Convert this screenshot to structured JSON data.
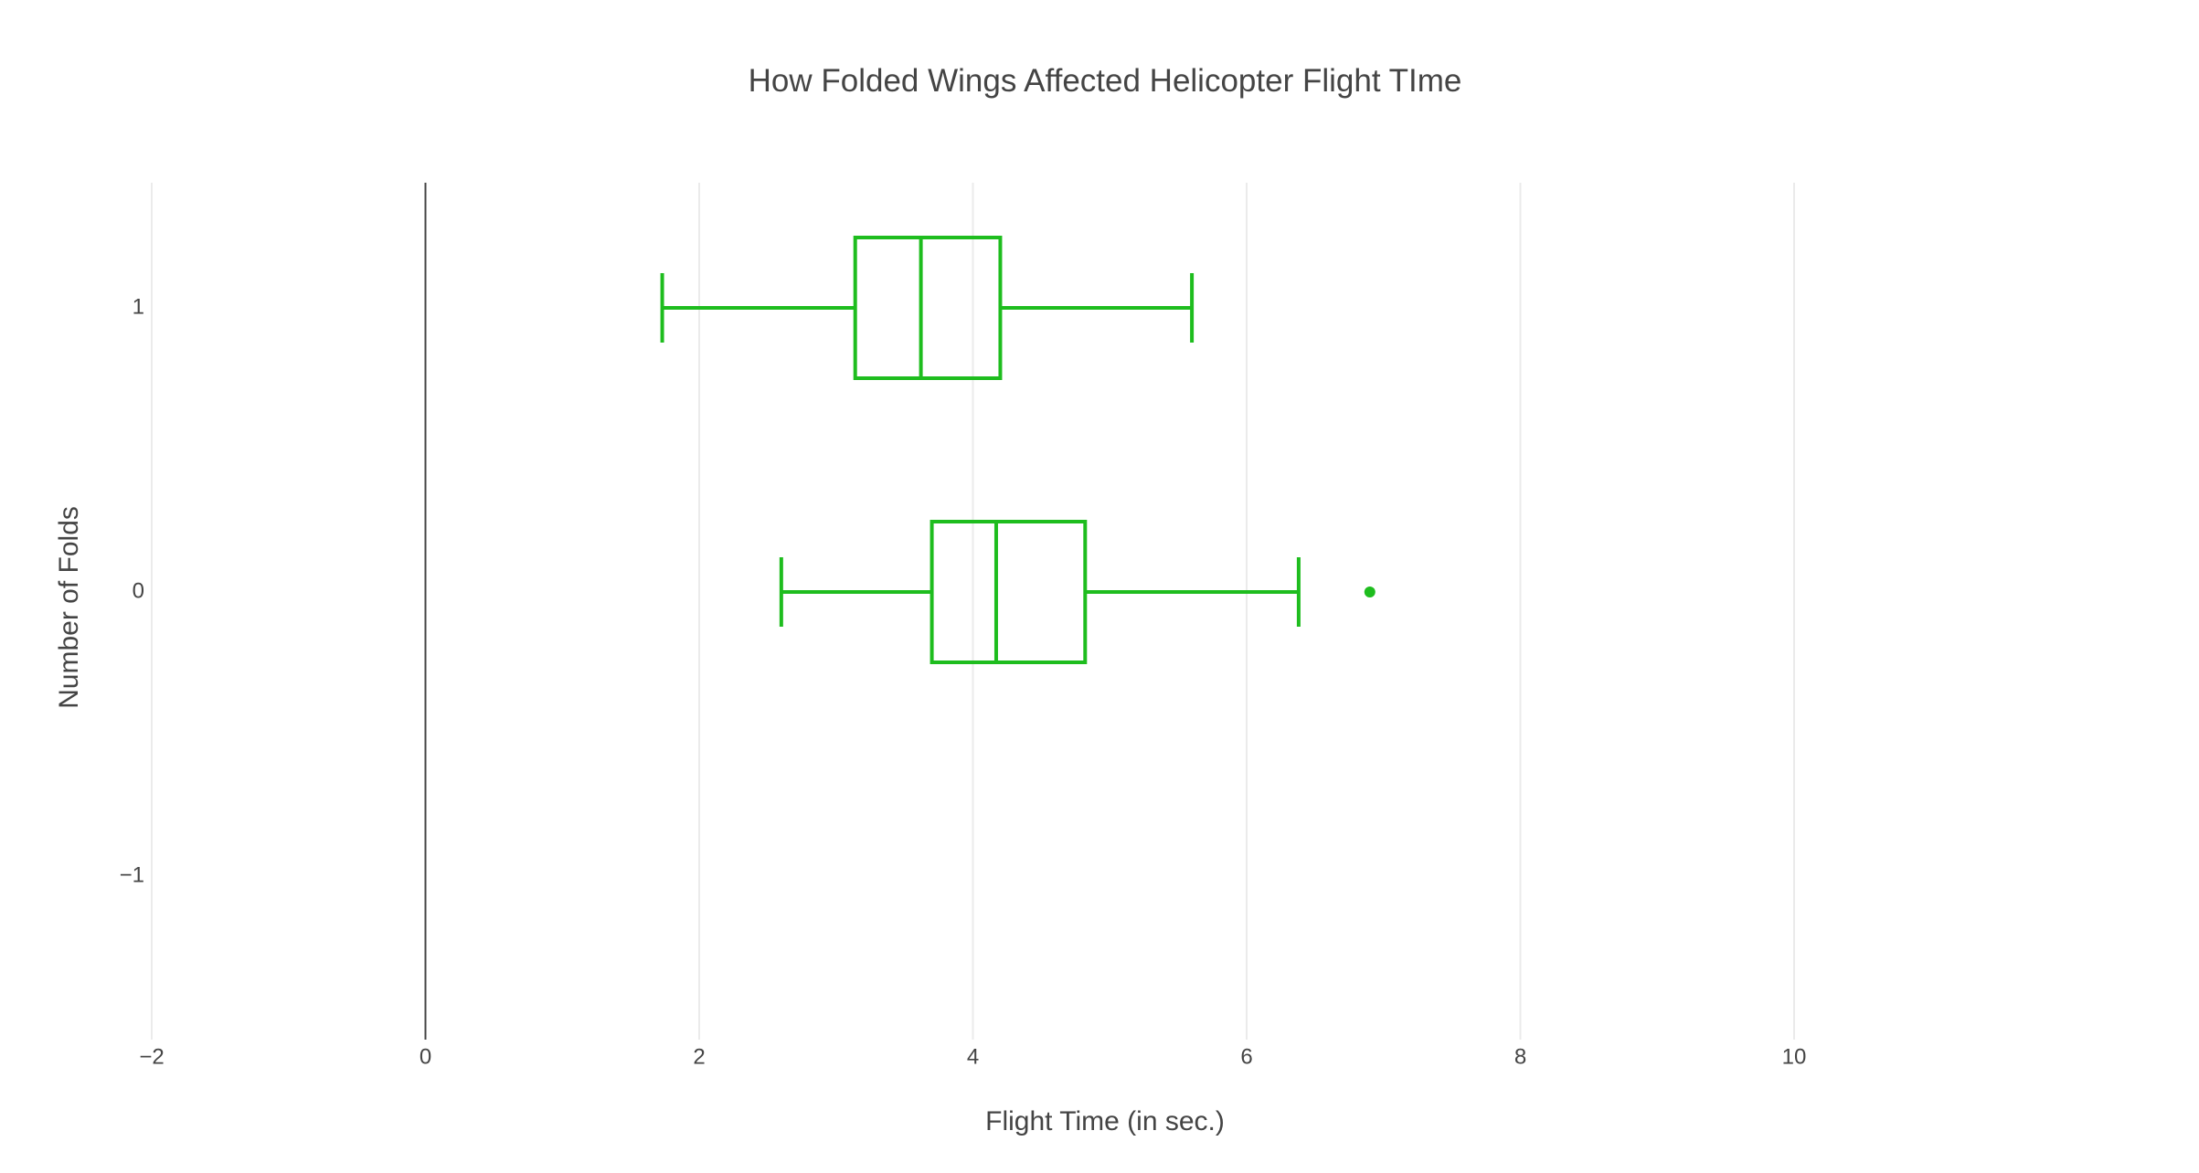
{
  "chart_data": {
    "type": "box",
    "orientation": "horizontal",
    "title": "How Folded Wings Affected Helicopter Flight TIme",
    "xlabel": "Flight Time (in sec.)",
    "ylabel": "Number of Folds",
    "xlim": [
      -2,
      13.3
    ],
    "ylim": [
      -1.5,
      1.43
    ],
    "xticks": [
      -2,
      0,
      2,
      4,
      6,
      8,
      10
    ],
    "xtick_labels": [
      "−2",
      "0",
      "2",
      "4",
      "6",
      "8",
      "10"
    ],
    "yticks": [
      -1,
      0,
      1
    ],
    "ytick_labels": [
      "−1",
      "0",
      "1"
    ],
    "grid": true,
    "zero_line": true,
    "color": "#1ebd1e",
    "boxes": [
      {
        "y": 1,
        "whisker_low": 1.73,
        "q1": 3.14,
        "median": 3.62,
        "q3": 4.2,
        "whisker_high": 5.6,
        "outliers": []
      },
      {
        "y": 0,
        "whisker_low": 2.6,
        "q1": 3.7,
        "median": 4.17,
        "q3": 4.82,
        "whisker_high": 6.38,
        "outliers": [
          6.9
        ]
      }
    ]
  }
}
